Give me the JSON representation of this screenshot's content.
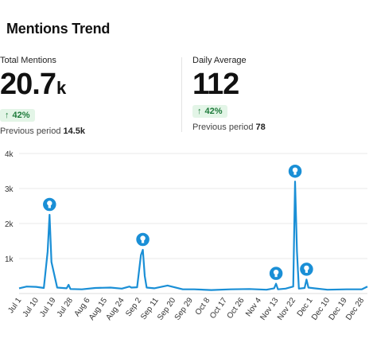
{
  "header": {
    "title": "Mentions Trend"
  },
  "metrics": {
    "total": {
      "label": "Total Mentions",
      "value": "20.7",
      "unit": "k",
      "change": "42%",
      "previous_label": "Previous period",
      "previous_value": "14.5k"
    },
    "daily": {
      "label": "Daily Average",
      "value": "112",
      "unit": "",
      "change": "42%",
      "previous_label": "Previous period",
      "previous_value": "78"
    }
  },
  "colors": {
    "line": "#1a8fd6",
    "marker": "#1a8fd6",
    "badge_bg": "#e3f5e7",
    "badge_text": "#1d7a3a",
    "grid": "#e8e8e8"
  },
  "chart_data": {
    "type": "line",
    "x": [
      "2023-07-01",
      "2023-07-05",
      "2023-07-10",
      "2023-07-14",
      "2023-07-16",
      "2023-07-17",
      "2023-07-18",
      "2023-07-21",
      "2023-07-26",
      "2023-07-27",
      "2023-07-28",
      "2023-08-03",
      "2023-08-10",
      "2023-08-18",
      "2023-08-24",
      "2023-08-28",
      "2023-08-29",
      "2023-09-01",
      "2023-09-03",
      "2023-09-04",
      "2023-09-05",
      "2023-09-06",
      "2023-09-10",
      "2023-09-17",
      "2023-09-25",
      "2023-10-01",
      "2023-10-10",
      "2023-10-20",
      "2023-10-30",
      "2023-11-08",
      "2023-11-12",
      "2023-11-13",
      "2023-11-14",
      "2023-11-18",
      "2023-11-22",
      "2023-11-23",
      "2023-11-24",
      "2023-11-25",
      "2023-11-28",
      "2023-11-29",
      "2023-11-30",
      "2023-12-03",
      "2023-12-10",
      "2023-12-20",
      "2023-12-28",
      "2023-12-31"
    ],
    "y": [
      150,
      200,
      190,
      160,
      1200,
      2250,
      900,
      170,
      150,
      250,
      130,
      120,
      160,
      170,
      140,
      200,
      170,
      180,
      1100,
      1250,
      500,
      170,
      150,
      230,
      120,
      120,
      100,
      120,
      130,
      110,
      150,
      280,
      120,
      140,
      200,
      3200,
      1200,
      140,
      160,
      400,
      170,
      150,
      110,
      120,
      120,
      200
    ],
    "markers": [
      {
        "x": "2023-07-17",
        "y": 2250
      },
      {
        "x": "2023-09-04",
        "y": 1250
      },
      {
        "x": "2023-11-13",
        "y": 280
      },
      {
        "x": "2023-11-23",
        "y": 3200
      },
      {
        "x": "2023-11-29",
        "y": 400
      }
    ],
    "ylim": [
      0,
      4000
    ],
    "yticks": [
      {
        "v": 1000,
        "label": "1k"
      },
      {
        "v": 2000,
        "label": "2k"
      },
      {
        "v": 3000,
        "label": "3k"
      },
      {
        "v": 4000,
        "label": "4k"
      }
    ],
    "xtick_dates": [
      "2023-07-01",
      "2023-07-10",
      "2023-07-19",
      "2023-07-28",
      "2023-08-06",
      "2023-08-15",
      "2023-08-24",
      "2023-09-02",
      "2023-09-11",
      "2023-09-20",
      "2023-09-29",
      "2023-10-08",
      "2023-10-17",
      "2023-10-26",
      "2023-11-04",
      "2023-11-13",
      "2023-11-22",
      "2023-12-01",
      "2023-12-10",
      "2023-12-19",
      "2023-12-28"
    ],
    "xtick_labels": [
      "Jul 1",
      "Jul 10",
      "Jul 19",
      "Jul 28",
      "Aug 6",
      "Aug 15",
      "Aug 24",
      "Sep 2",
      "Sep 11",
      "Sep 20",
      "Sep 29",
      "Oct 8",
      "Oct 17",
      "Oct 26",
      "Nov 4",
      "Nov 13",
      "Nov 22",
      "Dec 1",
      "Dec 10",
      "Dec 19",
      "Dec 28"
    ],
    "grid": true,
    "marker_icon": "lightbulb-icon"
  }
}
